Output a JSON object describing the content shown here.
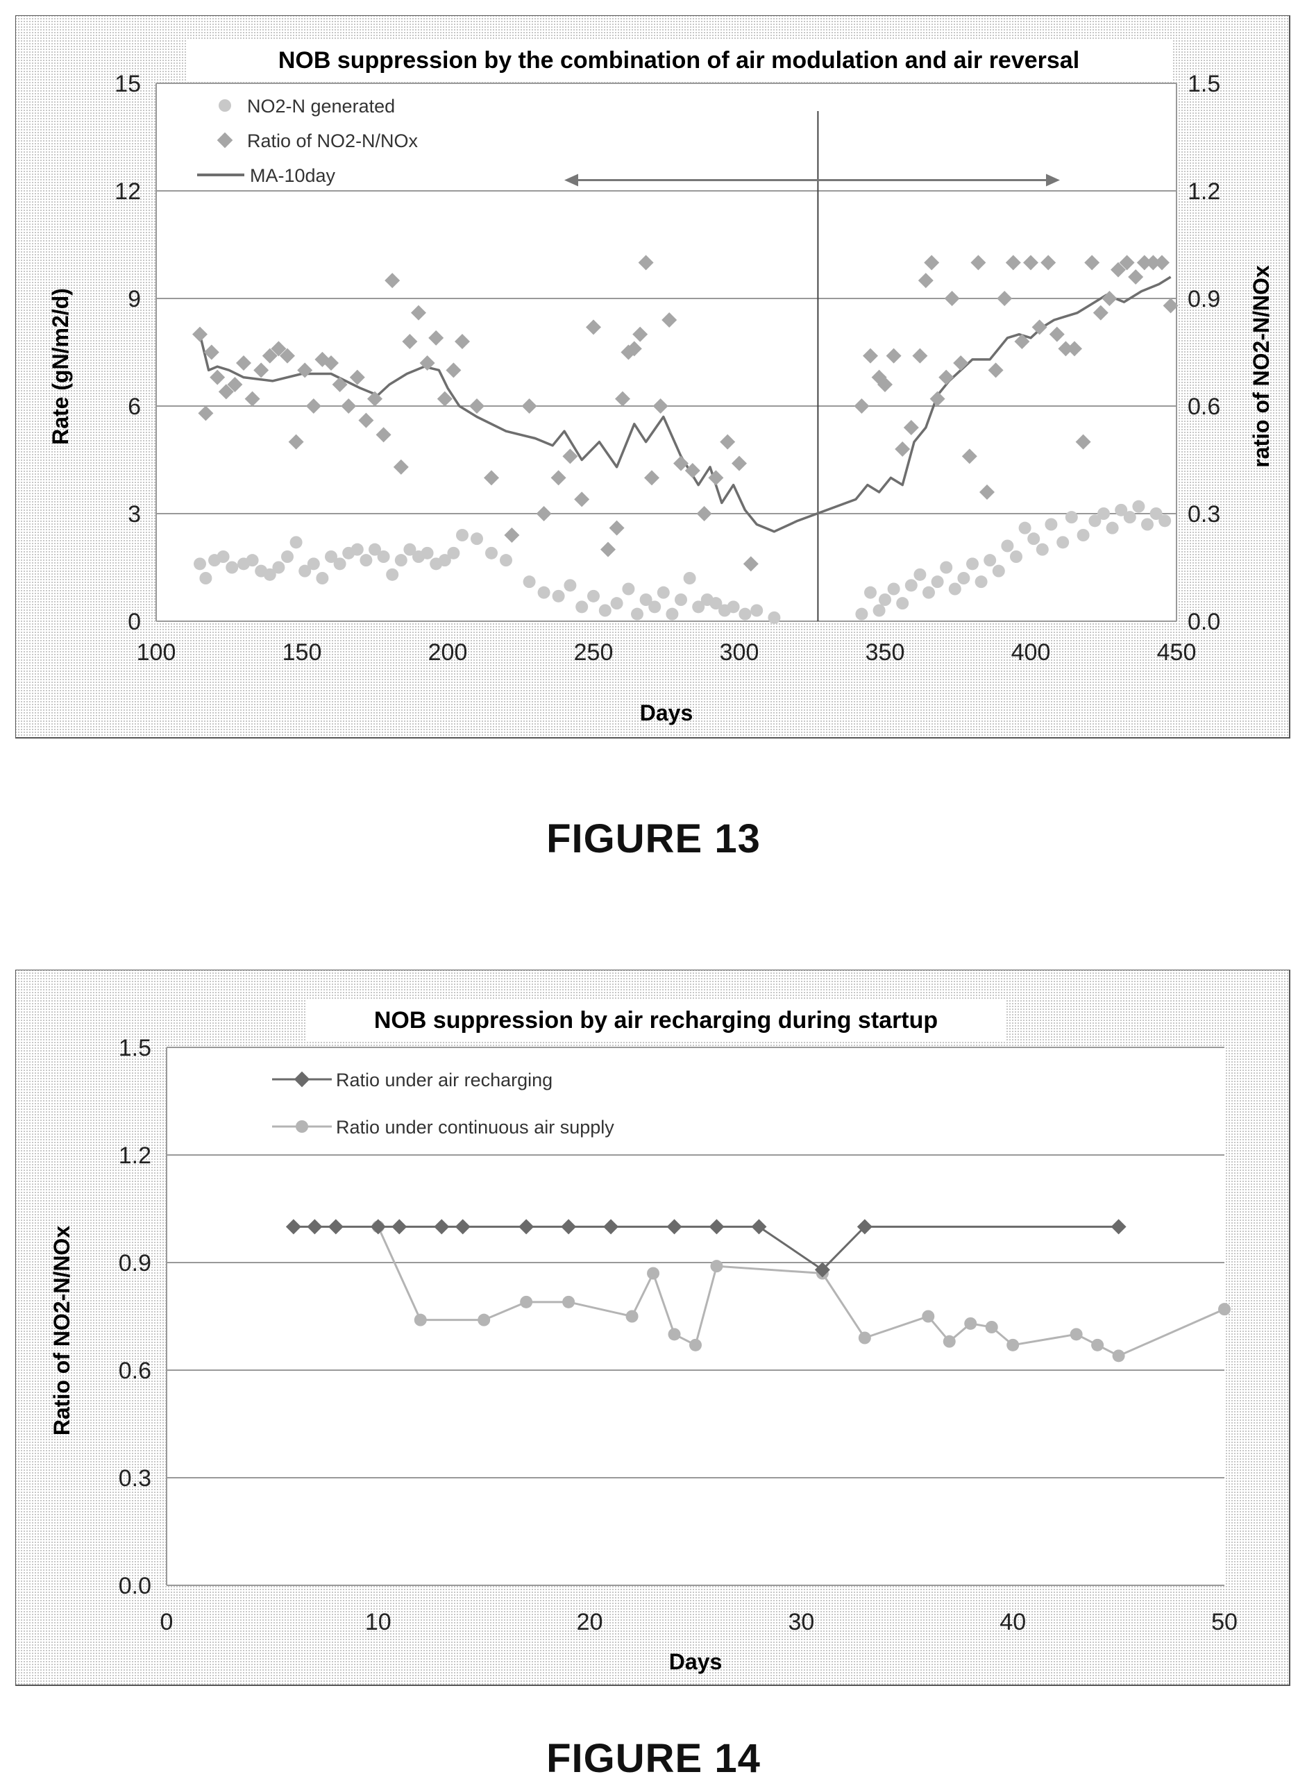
{
  "figures": [
    {
      "caption": "FIGURE 13",
      "chart_data": {
        "type": "scatter",
        "title": "NOB suppression by the combination of air modulation and air reversal",
        "xlabel": "Days",
        "ylabel": "Rate (gN/m2/d)",
        "y2label": "ratio of NO2-N/NOx",
        "xlim": [
          100,
          450
        ],
        "ylim": [
          0,
          15
        ],
        "y2lim": [
          0,
          1.5
        ],
        "xticks": [
          "100",
          "150",
          "200",
          "250",
          "300",
          "350",
          "400",
          "450"
        ],
        "yticks": [
          "0",
          "3",
          "6",
          "9",
          "12",
          "15"
        ],
        "y2ticks": [
          "0.0",
          "0.3",
          "0.6",
          "0.9",
          "1.2",
          "1.5"
        ],
        "grid": true,
        "legend": "top-left",
        "vertical_line_x": 327,
        "annotation_arrow": {
          "from_x": 240,
          "to_x": 410,
          "y": 12.3
        },
        "series": [
          {
            "name": "NO2-N generated",
            "axis": "left",
            "marker": "circle",
            "color": "#c8c8c8",
            "x": [
              115,
              117,
              120,
              123,
              126,
              130,
              133,
              136,
              139,
              142,
              145,
              148,
              151,
              154,
              157,
              160,
              163,
              166,
              169,
              172,
              175,
              178,
              181,
              184,
              187,
              190,
              193,
              196,
              199,
              202,
              205,
              210,
              215,
              220,
              228,
              233,
              238,
              242,
              246,
              250,
              254,
              258,
              262,
              265,
              268,
              271,
              274,
              277,
              280,
              283,
              286,
              289,
              292,
              295,
              298,
              302,
              306,
              312,
              342,
              345,
              348,
              350,
              353,
              356,
              359,
              362,
              365,
              368,
              371,
              374,
              377,
              380,
              383,
              386,
              389,
              392,
              395,
              398,
              401,
              404,
              407,
              411,
              414,
              418,
              422,
              425,
              428,
              431,
              434,
              437,
              440,
              443,
              446
            ],
            "y": [
              1.6,
              1.2,
              1.7,
              1.8,
              1.5,
              1.6,
              1.7,
              1.4,
              1.3,
              1.5,
              1.8,
              2.2,
              1.4,
              1.6,
              1.2,
              1.8,
              1.6,
              1.9,
              2.0,
              1.7,
              2.0,
              1.8,
              1.3,
              1.7,
              2.0,
              1.8,
              1.9,
              1.6,
              1.7,
              1.9,
              2.4,
              2.3,
              1.9,
              1.7,
              1.1,
              0.8,
              0.7,
              1.0,
              0.4,
              0.7,
              0.3,
              0.5,
              0.9,
              0.2,
              0.6,
              0.4,
              0.8,
              0.2,
              0.6,
              1.2,
              0.4,
              0.6,
              0.5,
              0.3,
              0.4,
              0.2,
              0.3,
              0.1,
              0.2,
              0.8,
              0.3,
              0.6,
              0.9,
              0.5,
              1.0,
              1.3,
              0.8,
              1.1,
              1.5,
              0.9,
              1.2,
              1.6,
              1.1,
              1.7,
              1.4,
              2.1,
              1.8,
              2.6,
              2.3,
              2.0,
              2.7,
              2.2,
              2.9,
              2.4,
              2.8,
              3.0,
              2.6,
              3.1,
              2.9,
              3.2,
              2.7,
              3.0,
              2.8
            ]
          },
          {
            "name": "Ratio of NO2-N/NOx",
            "axis": "right",
            "marker": "diamond",
            "color": "#a6a6a6",
            "x": [
              115,
              117,
              119,
              121,
              124,
              127,
              130,
              133,
              136,
              139,
              142,
              145,
              148,
              151,
              154,
              157,
              160,
              163,
              166,
              169,
              172,
              175,
              178,
              181,
              184,
              187,
              190,
              193,
              196,
              199,
              202,
              205,
              210,
              215,
              222,
              228,
              233,
              238,
              242,
              246,
              250,
              255,
              258,
              260,
              262,
              264,
              266,
              268,
              270,
              273,
              276,
              280,
              284,
              288,
              292,
              296,
              300,
              304,
              342,
              345,
              348,
              350,
              353,
              356,
              359,
              362,
              364,
              366,
              368,
              371,
              373,
              376,
              379,
              382,
              385,
              388,
              391,
              394,
              397,
              400,
              403,
              406,
              409,
              412,
              415,
              418,
              421,
              424,
              427,
              430,
              433,
              436,
              439,
              442,
              445,
              448
            ],
            "y": [
              0.8,
              0.58,
              0.75,
              0.68,
              0.64,
              0.66,
              0.72,
              0.62,
              0.7,
              0.74,
              0.76,
              0.74,
              0.5,
              0.7,
              0.6,
              0.73,
              0.72,
              0.66,
              0.6,
              0.68,
              0.56,
              0.62,
              0.52,
              0.95,
              0.43,
              0.78,
              0.86,
              0.72,
              0.79,
              0.62,
              0.7,
              0.78,
              0.6,
              0.4,
              0.24,
              0.6,
              0.3,
              0.4,
              0.46,
              0.34,
              0.82,
              0.2,
              0.26,
              0.62,
              0.75,
              0.76,
              0.8,
              1.0,
              0.4,
              0.6,
              0.84,
              0.44,
              0.42,
              0.3,
              0.4,
              0.5,
              0.44,
              0.16,
              0.6,
              0.74,
              0.68,
              0.66,
              0.74,
              0.48,
              0.54,
              0.74,
              0.95,
              1.0,
              0.62,
              0.68,
              0.9,
              0.72,
              0.46,
              1.0,
              0.36,
              0.7,
              0.9,
              1.0,
              0.78,
              1.0,
              0.82,
              1.0,
              0.8,
              0.76,
              0.76,
              0.5,
              1.0,
              0.86,
              0.9,
              0.98,
              1.0,
              0.96,
              1.0,
              1.0,
              1.0,
              0.88
            ]
          },
          {
            "name": "MA-10day",
            "axis": "right",
            "type": "line",
            "color": "#6e6e6e",
            "x": [
              115,
              118,
              121,
              125,
              130,
              140,
              150,
              160,
              170,
              176,
              180,
              186,
              192,
              197,
              200,
              204,
              210,
              220,
              230,
              236,
              240,
              246,
              252,
              258,
              264,
              268,
              274,
              280,
              286,
              290,
              294,
              298,
              302,
              306,
              312,
              320,
              330,
              340,
              344,
              348,
              352,
              356,
              360,
              364,
              368,
              372,
              376,
              380,
              386,
              392,
              396,
              400,
              404,
              408,
              412,
              416,
              420,
              426,
              432,
              438,
              444,
              448
            ],
            "y": [
              0.8,
              0.7,
              0.71,
              0.7,
              0.68,
              0.67,
              0.69,
              0.69,
              0.65,
              0.63,
              0.66,
              0.69,
              0.71,
              0.7,
              0.65,
              0.6,
              0.57,
              0.53,
              0.51,
              0.49,
              0.53,
              0.45,
              0.5,
              0.43,
              0.55,
              0.5,
              0.57,
              0.46,
              0.38,
              0.43,
              0.33,
              0.38,
              0.31,
              0.27,
              0.25,
              0.28,
              0.31,
              0.34,
              0.38,
              0.36,
              0.4,
              0.38,
              0.5,
              0.54,
              0.63,
              0.67,
              0.7,
              0.73,
              0.73,
              0.79,
              0.8,
              0.79,
              0.82,
              0.84,
              0.85,
              0.86,
              0.88,
              0.91,
              0.89,
              0.92,
              0.94,
              0.96
            ]
          }
        ]
      }
    },
    {
      "caption": "FIGURE 14",
      "chart_data": {
        "type": "line",
        "title": "NOB suppression by air recharging during startup",
        "xlabel": "Days",
        "ylabel": "Ratio of NO2-N/NOx",
        "xlim": [
          0,
          50
        ],
        "ylim": [
          0,
          1.5
        ],
        "xticks": [
          "0",
          "10",
          "20",
          "30",
          "40",
          "50"
        ],
        "yticks": [
          "0.0",
          "0.3",
          "0.6",
          "0.9",
          "1.2",
          "1.5"
        ],
        "grid": true,
        "legend": "top-left",
        "series": [
          {
            "name": "Ratio under air recharging",
            "marker": "diamond",
            "color": "#6a6a6a",
            "x": [
              6,
              7,
              8,
              10,
              11,
              13,
              14,
              17,
              19,
              21,
              24,
              26,
              28,
              31,
              33,
              45
            ],
            "y": [
              1.0,
              1.0,
              1.0,
              1.0,
              1.0,
              1.0,
              1.0,
              1.0,
              1.0,
              1.0,
              1.0,
              1.0,
              1.0,
              0.88,
              1.0,
              1.0
            ]
          },
          {
            "name": "Ratio under continuous air supply",
            "marker": "circle",
            "color": "#b4b4b4",
            "x": [
              10,
              12,
              15,
              17,
              19,
              22,
              23,
              24,
              25,
              26,
              31,
              33,
              36,
              37,
              38,
              39,
              40,
              43,
              44,
              45,
              50
            ],
            "y": [
              1.0,
              0.74,
              0.74,
              0.79,
              0.79,
              0.75,
              0.87,
              0.7,
              0.67,
              0.89,
              0.87,
              0.69,
              0.75,
              0.68,
              0.73,
              0.72,
              0.67,
              0.7,
              0.67,
              0.64,
              0.77
            ]
          }
        ]
      }
    }
  ]
}
